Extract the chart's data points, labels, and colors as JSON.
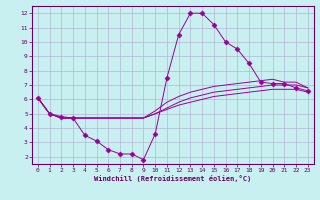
{
  "xlabel": "Windchill (Refroidissement éolien,°C)",
  "ylabel": "",
  "background_color": "#c8f0f0",
  "line_color": "#990099",
  "grid_color": "#aaaacc",
  "xlim": [
    -0.5,
    23.5
  ],
  "ylim": [
    1.5,
    12.5
  ],
  "xticks": [
    0,
    1,
    2,
    3,
    4,
    5,
    6,
    7,
    8,
    9,
    10,
    11,
    12,
    13,
    14,
    15,
    16,
    17,
    18,
    19,
    20,
    21,
    22,
    23
  ],
  "yticks": [
    2,
    3,
    4,
    5,
    6,
    7,
    8,
    9,
    10,
    11,
    12
  ],
  "series": [
    {
      "x": [
        0,
        1,
        2,
        3,
        4,
        5,
        6,
        7,
        8,
        9,
        10,
        11,
        12,
        13,
        14,
        15,
        16,
        17,
        18,
        19,
        20,
        21,
        22,
        23
      ],
      "y": [
        6.1,
        5.0,
        4.8,
        4.7,
        3.5,
        3.1,
        2.5,
        2.2,
        2.2,
        1.8,
        3.6,
        7.5,
        10.5,
        12.0,
        12.0,
        11.2,
        10.0,
        9.5,
        8.5,
        7.2,
        7.1,
        7.1,
        6.8,
        6.6
      ],
      "marker": "D",
      "markersize": 2.5
    },
    {
      "x": [
        0,
        1,
        2,
        3,
        9,
        10,
        11,
        12,
        13,
        14,
        15,
        16,
        17,
        18,
        19,
        20,
        21,
        22,
        23
      ],
      "y": [
        6.1,
        5.0,
        4.7,
        4.7,
        4.7,
        5.2,
        5.8,
        6.2,
        6.5,
        6.7,
        6.9,
        7.0,
        7.1,
        7.2,
        7.3,
        7.4,
        7.2,
        7.2,
        6.8
      ],
      "marker": null,
      "markersize": 0
    },
    {
      "x": [
        0,
        1,
        2,
        3,
        9,
        10,
        11,
        12,
        13,
        14,
        15,
        16,
        17,
        18,
        19,
        20,
        21,
        22,
        23
      ],
      "y": [
        6.1,
        5.0,
        4.7,
        4.7,
        4.7,
        5.0,
        5.4,
        5.8,
        6.1,
        6.3,
        6.5,
        6.6,
        6.7,
        6.8,
        6.9,
        7.0,
        7.0,
        7.0,
        6.8
      ],
      "marker": null,
      "markersize": 0
    },
    {
      "x": [
        0,
        1,
        2,
        3,
        9,
        10,
        11,
        12,
        13,
        14,
        15,
        16,
        17,
        18,
        19,
        20,
        21,
        22,
        23
      ],
      "y": [
        6.1,
        5.0,
        4.7,
        4.7,
        4.7,
        5.0,
        5.3,
        5.6,
        5.8,
        6.0,
        6.2,
        6.3,
        6.4,
        6.5,
        6.6,
        6.7,
        6.7,
        6.7,
        6.5
      ],
      "marker": null,
      "markersize": 0
    }
  ]
}
